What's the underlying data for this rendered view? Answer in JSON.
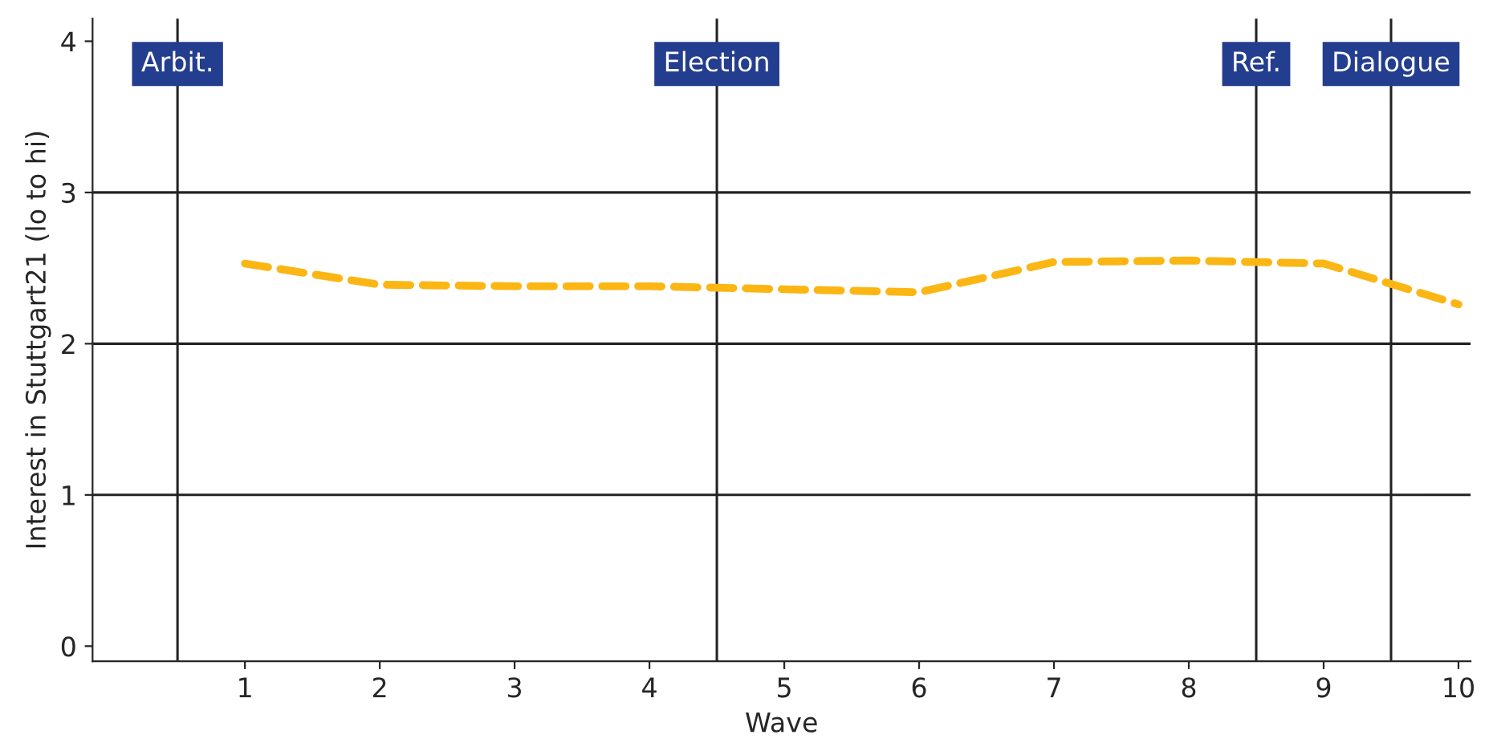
{
  "chart_data": {
    "type": "line",
    "xlabel": "Wave",
    "ylabel": "Interest in Stuttgart21 (lo to hi)",
    "x": [
      1,
      2,
      3,
      4,
      5,
      6,
      7,
      8,
      9,
      10
    ],
    "series": [
      {
        "color": "#fbb614",
        "values": [
          2.53,
          2.39,
          2.38,
          2.38,
          2.36,
          2.34,
          2.54,
          2.55,
          2.53,
          2.26
        ]
      }
    ],
    "xlim": [
      -0.13,
      10.09
    ],
    "ylim": [
      -0.1,
      4.15
    ],
    "xticks": [
      1,
      2,
      3,
      4,
      5,
      6,
      7,
      8,
      9,
      10
    ],
    "yticks": [
      0,
      1,
      2,
      3,
      4
    ],
    "ref_lines": [
      {
        "axis": "x",
        "value": 0.5,
        "label": "Arbit.",
        "color": "#222222"
      },
      {
        "axis": "x",
        "value": 4.5,
        "label": "Election",
        "color": "#222222"
      },
      {
        "axis": "x",
        "value": 8.5,
        "label": "Ref.",
        "color": "#222222"
      },
      {
        "axis": "x",
        "value": 9.5,
        "label": "Dialogue",
        "color": "#222222"
      },
      {
        "axis": "y",
        "value": 1,
        "color": "#222222"
      },
      {
        "axis": "y",
        "value": 2,
        "color": "#222222"
      },
      {
        "axis": "y",
        "value": 3,
        "color": "#222222"
      }
    ],
    "line_style": "dashed",
    "marker": "none"
  }
}
